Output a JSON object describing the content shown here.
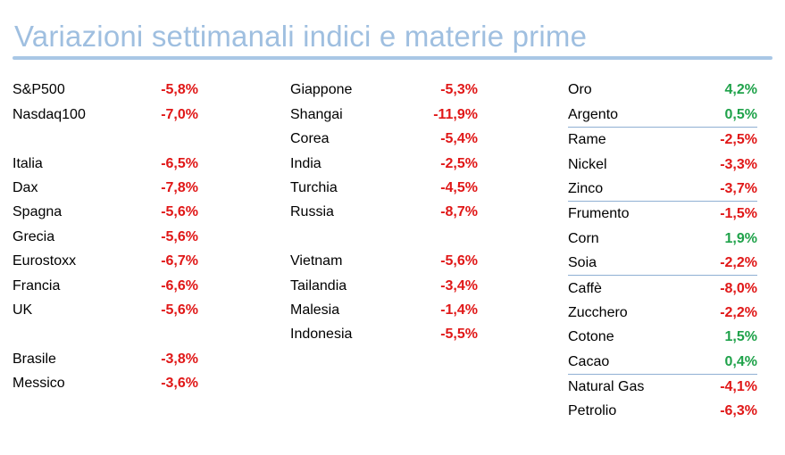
{
  "title": "Variazioni settimanali indici e materie prime",
  "colors": {
    "negative": "#e01717",
    "positive": "#1fa24a",
    "title": "#9fbfe0",
    "rule": "#a9c7e6"
  },
  "columns": [
    {
      "rows": [
        {
          "name": "S&P500",
          "value": "-5,8%",
          "sign": "neg"
        },
        {
          "name": "Nasdaq100",
          "value": "-7,0%",
          "sign": "neg"
        },
        {
          "spacer": true
        },
        {
          "name": "Italia",
          "value": "-6,5%",
          "sign": "neg"
        },
        {
          "name": "Dax",
          "value": "-7,8%",
          "sign": "neg"
        },
        {
          "name": "Spagna",
          "value": "-5,6%",
          "sign": "neg"
        },
        {
          "name": "Grecia",
          "value": "-5,6%",
          "sign": "neg"
        },
        {
          "name": "Eurostoxx",
          "value": "-6,7%",
          "sign": "neg"
        },
        {
          "name": "Francia",
          "value": "-6,6%",
          "sign": "neg"
        },
        {
          "name": "UK",
          "value": "-5,6%",
          "sign": "neg"
        },
        {
          "spacer": true
        },
        {
          "name": "Brasile",
          "value": "-3,8%",
          "sign": "neg"
        },
        {
          "name": "Messico",
          "value": "-3,6%",
          "sign": "neg"
        }
      ]
    },
    {
      "rows": [
        {
          "name": "Giappone",
          "value": "-5,3%",
          "sign": "neg"
        },
        {
          "name": "Shangai",
          "value": "-11,9%",
          "sign": "neg"
        },
        {
          "name": "Corea",
          "value": "-5,4%",
          "sign": "neg"
        },
        {
          "name": "India",
          "value": "-2,5%",
          "sign": "neg"
        },
        {
          "name": "Turchia",
          "value": "-4,5%",
          "sign": "neg"
        },
        {
          "name": "Russia",
          "value": "-8,7%",
          "sign": "neg"
        },
        {
          "spacer": true
        },
        {
          "name": "Vietnam",
          "value": "-5,6%",
          "sign": "neg"
        },
        {
          "name": "Tailandia",
          "value": "-3,4%",
          "sign": "neg"
        },
        {
          "name": "Malesia",
          "value": "-1,4%",
          "sign": "neg"
        },
        {
          "name": "Indonesia",
          "value": "-5,5%",
          "sign": "neg"
        }
      ]
    },
    {
      "rows": [
        {
          "name": "Oro",
          "value": "4,2%",
          "sign": "pos"
        },
        {
          "name": "Argento",
          "value": "0,5%",
          "sign": "pos",
          "sep": true
        },
        {
          "name": "Rame",
          "value": "-2,5%",
          "sign": "neg"
        },
        {
          "name": "Nickel",
          "value": "-3,3%",
          "sign": "neg"
        },
        {
          "name": "Zinco",
          "value": "-3,7%",
          "sign": "neg",
          "sep": true
        },
        {
          "name": "Frumento",
          "value": "-1,5%",
          "sign": "neg"
        },
        {
          "name": "Corn",
          "value": "1,9%",
          "sign": "pos"
        },
        {
          "name": "Soia",
          "value": "-2,2%",
          "sign": "neg",
          "sep": true
        },
        {
          "name": "Caffè",
          "value": "-8,0%",
          "sign": "neg"
        },
        {
          "name": "Zucchero",
          "value": "-2,2%",
          "sign": "neg"
        },
        {
          "name": "Cotone",
          "value": "1,5%",
          "sign": "pos"
        },
        {
          "name": "Cacao",
          "value": "0,4%",
          "sign": "pos",
          "sep": true
        },
        {
          "name": "Natural Gas",
          "value": "-4,1%",
          "sign": "neg"
        },
        {
          "name": "Petrolio",
          "value": "-6,3%",
          "sign": "neg"
        }
      ]
    }
  ]
}
